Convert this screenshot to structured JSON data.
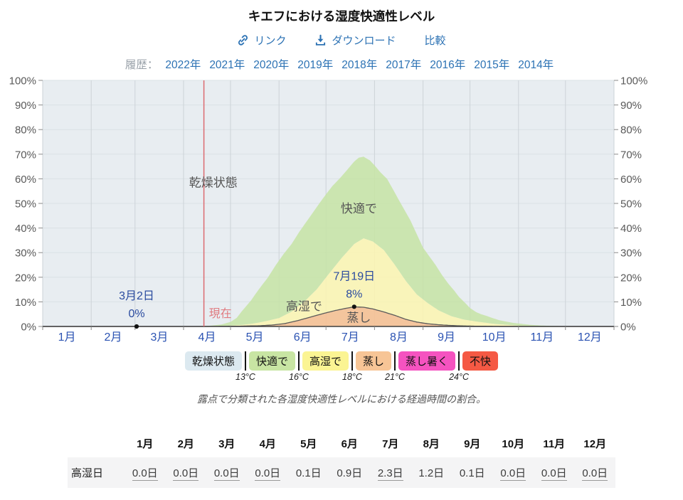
{
  "title": "キエフにおける湿度快適性レベル",
  "toolbar": {
    "link_label": "リンク",
    "download_label": "ダウンロード",
    "compare_label": "比較",
    "link_color": "#2c72b4"
  },
  "history": {
    "label": "履歴：",
    "years": [
      "2022年",
      "2021年",
      "2020年",
      "2019年",
      "2018年",
      "2017年",
      "2016年",
      "2015年",
      "2014年"
    ]
  },
  "chart_data": {
    "type": "area",
    "stacked": true,
    "title": "キエフにおける湿度快適性レベル",
    "x_unit": "day_of_year",
    "xlim": [
      1,
      366
    ],
    "ylim": [
      0,
      100
    ],
    "grid": true,
    "y_tick_labels": [
      "0%",
      "10%",
      "20%",
      "30%",
      "40%",
      "50%",
      "60%",
      "70%",
      "80%",
      "90%",
      "100%"
    ],
    "x_tick_labels": [
      "1月",
      "2月",
      "3月",
      "4月",
      "5月",
      "6月",
      "7月",
      "8月",
      "9月",
      "10月",
      "11月",
      "12月"
    ],
    "month_start_days": [
      1,
      32,
      60,
      91,
      121,
      152,
      182,
      213,
      244,
      274,
      305,
      335,
      366
    ],
    "series_note": "points are cumulative stacked tops [day_of_year, percent_of_time]",
    "series": [
      {
        "name": "蒸し",
        "fill": "#f5c093",
        "stroke": "#5a5a5a",
        "points": [
          [
            1,
            0
          ],
          [
            105,
            0
          ],
          [
            125,
            0.1
          ],
          [
            140,
            0.3
          ],
          [
            148,
            0.6
          ],
          [
            156,
            1.2
          ],
          [
            164,
            2.4
          ],
          [
            172,
            3.8
          ],
          [
            180,
            5.2
          ],
          [
            188,
            6.5
          ],
          [
            195,
            7.4
          ],
          [
            200,
            8
          ],
          [
            206,
            7.8
          ],
          [
            212,
            7.1
          ],
          [
            219,
            5.9
          ],
          [
            226,
            4.5
          ],
          [
            233,
            2.9
          ],
          [
            240,
            1.8
          ],
          [
            247,
            1.1
          ],
          [
            254,
            0.7
          ],
          [
            262,
            0.4
          ],
          [
            270,
            0.2
          ],
          [
            280,
            0.1
          ],
          [
            295,
            0
          ],
          [
            366,
            0
          ]
        ]
      },
      {
        "name": "高湿で",
        "fill": "#fbf5b0",
        "points": [
          [
            1,
            0
          ],
          [
            105,
            0
          ],
          [
            118,
            0.2
          ],
          [
            128,
            0.6
          ],
          [
            136,
            1.2
          ],
          [
            144,
            2.2
          ],
          [
            152,
            3.4
          ],
          [
            160,
            6
          ],
          [
            168,
            10
          ],
          [
            176,
            15
          ],
          [
            184,
            21.5
          ],
          [
            192,
            27.8
          ],
          [
            200,
            33.5
          ],
          [
            206,
            35.8
          ],
          [
            212,
            34.5
          ],
          [
            219,
            31
          ],
          [
            226,
            25
          ],
          [
            233,
            18.5
          ],
          [
            240,
            13
          ],
          [
            247,
            9.5
          ],
          [
            254,
            6.5
          ],
          [
            262,
            4.2
          ],
          [
            270,
            2.8
          ],
          [
            278,
            2
          ],
          [
            290,
            1
          ],
          [
            305,
            0.3
          ],
          [
            320,
            0.1
          ],
          [
            335,
            0
          ],
          [
            366,
            0
          ]
        ]
      },
      {
        "name": "快適で",
        "fill": "#c5e3a5",
        "points": [
          [
            1,
            0
          ],
          [
            61,
            0
          ],
          [
            100,
            0
          ],
          [
            108,
            0.3
          ],
          [
            115,
            0.8
          ],
          [
            121,
            1.8
          ],
          [
            125,
            3.5
          ],
          [
            128,
            6
          ],
          [
            134,
            10.5
          ],
          [
            139,
            15
          ],
          [
            145,
            20
          ],
          [
            150,
            25
          ],
          [
            155,
            29.5
          ],
          [
            160,
            33.5
          ],
          [
            165,
            38.5
          ],
          [
            170,
            43
          ],
          [
            175,
            47.5
          ],
          [
            180,
            52
          ],
          [
            186,
            57
          ],
          [
            192,
            61
          ],
          [
            196,
            64
          ],
          [
            200,
            67
          ],
          [
            203,
            68.6
          ],
          [
            206,
            69
          ],
          [
            210,
            67.5
          ],
          [
            213,
            65.5
          ],
          [
            217,
            62.5
          ],
          [
            221,
            60
          ],
          [
            225,
            55.5
          ],
          [
            228,
            52
          ],
          [
            232,
            47.5
          ],
          [
            236,
            43
          ],
          [
            240,
            37.5
          ],
          [
            244,
            32
          ],
          [
            248,
            28.5
          ],
          [
            252,
            25
          ],
          [
            256,
            21
          ],
          [
            260,
            17.5
          ],
          [
            264,
            14.5
          ],
          [
            267,
            12
          ],
          [
            271,
            9.5
          ],
          [
            274,
            7.5
          ],
          [
            278,
            5.8
          ],
          [
            281,
            5
          ],
          [
            285,
            4.2
          ],
          [
            288,
            3.5
          ],
          [
            293,
            2.5
          ],
          [
            297,
            2
          ],
          [
            301,
            1.5
          ],
          [
            305,
            1.2
          ],
          [
            312,
            0.7
          ],
          [
            319,
            0.4
          ],
          [
            327,
            0.2
          ],
          [
            335,
            0.1
          ],
          [
            345,
            0
          ],
          [
            366,
            0
          ]
        ]
      }
    ],
    "markers": [
      {
        "day": 61,
        "percent": 0,
        "date_label": "3月2日",
        "value_label": "0%"
      },
      {
        "day": 200,
        "percent": 8,
        "date_label": "7月19日",
        "value_label": "8%"
      }
    ],
    "now_line": {
      "day": 104,
      "label": "現在",
      "color": "#dc6a70"
    },
    "region_labels": [
      {
        "text": "乾燥状態",
        "day": 110,
        "percent": 58.5
      },
      {
        "text": "快適で",
        "day": 203,
        "percent": 48
      },
      {
        "text": "高湿で",
        "day": 168,
        "percent": 8.2
      },
      {
        "text": "蒸し",
        "day": 203,
        "percent": 3.6
      }
    ],
    "colors": {
      "plot_bg": "#e8edf1",
      "grid_vertical": "#cdd3d8",
      "grid_horizontal": "#dae1e5",
      "axis_line": "#3f3f3f",
      "axis_text": "#595959",
      "tick": "#8a8a8a",
      "month_text": "#2a52b2",
      "annotation_text": "#2a4b9f",
      "region_text": "#555555",
      "now_text": "#e07b80",
      "dot": "#111111"
    }
  },
  "legend": {
    "items": [
      {
        "key": "dry",
        "label": "乾燥状態",
        "color": "#dce9f0"
      },
      {
        "key": "comfortable",
        "label": "快適で",
        "color": "#c8e5a3"
      },
      {
        "key": "humid",
        "label": "高湿で",
        "color": "#fbf493"
      },
      {
        "key": "muggy",
        "label": "蒸し",
        "color": "#f7c596"
      },
      {
        "key": "muggy-hot",
        "label": "蒸し暑く",
        "color": "#f553c0"
      },
      {
        "key": "miserable",
        "label": "不快",
        "color": "#f55944"
      }
    ],
    "thresholds": [
      "13°C",
      "16°C",
      "18°C",
      "21°C",
      "24°C"
    ]
  },
  "caption": "露点で分類された各湿度快適性レベルにおける経過時間の割合。",
  "table": {
    "row_label": "高湿日",
    "months": [
      "1月",
      "2月",
      "3月",
      "4月",
      "5月",
      "6月",
      "7月",
      "8月",
      "9月",
      "10月",
      "11月",
      "12月"
    ],
    "values": [
      {
        "text": "0.0日",
        "underlined": true
      },
      {
        "text": "0.0日",
        "underlined": true
      },
      {
        "text": "0.0日",
        "underlined": true
      },
      {
        "text": "0.0日",
        "underlined": true
      },
      {
        "text": "0.1日",
        "underlined": false
      },
      {
        "text": "0.9日",
        "underlined": false
      },
      {
        "text": "2.3日",
        "underlined": true
      },
      {
        "text": "1.2日",
        "underlined": false
      },
      {
        "text": "0.1日",
        "underlined": false
      },
      {
        "text": "0.0日",
        "underlined": true
      },
      {
        "text": "0.0日",
        "underlined": true
      },
      {
        "text": "0.0日",
        "underlined": true
      }
    ]
  }
}
